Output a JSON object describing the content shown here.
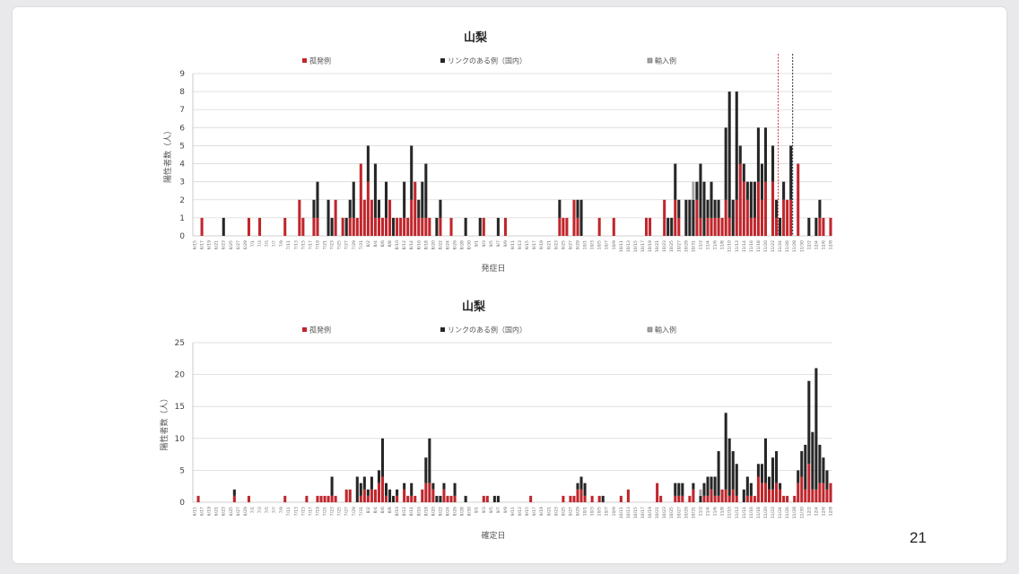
{
  "page_number": "21",
  "colors": {
    "sporadic": "#c0262c",
    "linked": "#262626",
    "imported": "#a6a6a6",
    "grid": "#d9d9d9"
  },
  "chart_data": [
    {
      "type": "bar",
      "stacked": true,
      "title": "山梨",
      "xlabel": "発症日",
      "ylabel": "陽性者数（人）",
      "ylim": [
        0,
        9
      ],
      "yticks": [
        0,
        1,
        2,
        3,
        4,
        5,
        6,
        7,
        8,
        9
      ],
      "legend": [
        "孤発例",
        "リンクのある例（国内）",
        "輸入例"
      ],
      "legend_placement": "top",
      "date_range": [
        "6/15",
        "12/8"
      ],
      "x_ticks": [
        "6/15",
        "6/17",
        "6/19",
        "6/21",
        "6/23",
        "6/25",
        "6/27",
        "6/29",
        "7/1",
        "7/3",
        "7/5",
        "7/7",
        "7/9",
        "7/11",
        "7/13",
        "7/15",
        "7/17",
        "7/19",
        "7/21",
        "7/23",
        "7/25",
        "7/27",
        "7/29",
        "7/31",
        "8/2",
        "8/4",
        "8/6",
        "8/8",
        "8/10",
        "8/12",
        "8/14",
        "8/16",
        "8/18",
        "8/20",
        "8/22",
        "8/24",
        "8/26",
        "8/28",
        "8/30",
        "9/1",
        "9/3",
        "9/5",
        "9/7",
        "9/9",
        "9/11",
        "9/13",
        "9/15",
        "9/17",
        "9/19",
        "9/21",
        "9/23",
        "9/25",
        "9/27",
        "9/29",
        "10/1",
        "10/3",
        "10/5",
        "10/7",
        "10/9",
        "10/11",
        "10/13",
        "10/15",
        "10/17",
        "10/19",
        "10/21",
        "10/23",
        "10/25",
        "10/27",
        "10/29",
        "10/31",
        "11/2",
        "11/4",
        "11/6",
        "11/8",
        "11/10",
        "11/12",
        "11/14",
        "11/16",
        "11/18",
        "11/20",
        "11/22",
        "11/24",
        "11/26",
        "11/28",
        "11/30",
        "12/2",
        "12/4",
        "12/6",
        "12/8"
      ],
      "series_order": [
        "sporadic",
        "linked",
        "imported"
      ],
      "bars": {
        "6/17": [
          1,
          0,
          0
        ],
        "6/23": [
          0,
          1,
          0
        ],
        "6/30": [
          1,
          0,
          0
        ],
        "7/3": [
          1,
          0,
          0
        ],
        "7/10": [
          1,
          0,
          0
        ],
        "7/14": [
          2,
          0,
          0
        ],
        "7/15": [
          1,
          0,
          0
        ],
        "7/18": [
          1,
          1,
          0
        ],
        "7/19": [
          1,
          2,
          0
        ],
        "7/22": [
          0,
          2,
          0
        ],
        "7/23": [
          0,
          1,
          0
        ],
        "7/24": [
          2,
          0,
          0
        ],
        "7/26": [
          1,
          0,
          0
        ],
        "7/27": [
          0,
          1,
          0
        ],
        "7/28": [
          1,
          1,
          0
        ],
        "7/29": [
          1,
          2,
          0
        ],
        "7/30": [
          1,
          0,
          0
        ],
        "7/31": [
          4,
          0,
          0
        ],
        "8/1": [
          2,
          0,
          0
        ],
        "8/2": [
          3,
          2,
          0
        ],
        "8/3": [
          2,
          0,
          0
        ],
        "8/4": [
          1,
          3,
          0
        ],
        "8/5": [
          1,
          1,
          0
        ],
        "8/6": [
          1,
          0,
          0
        ],
        "8/7": [
          1,
          2,
          0
        ],
        "8/8": [
          2,
          0,
          0
        ],
        "8/9": [
          0,
          1,
          0
        ],
        "8/10": [
          1,
          0,
          0
        ],
        "8/11": [
          1,
          0,
          0
        ],
        "8/12": [
          1,
          2,
          0
        ],
        "8/13": [
          1,
          0,
          0
        ],
        "8/14": [
          2,
          3,
          0
        ],
        "8/15": [
          3,
          0,
          0
        ],
        "8/16": [
          1,
          1,
          0
        ],
        "8/17": [
          1,
          2,
          0
        ],
        "8/18": [
          1,
          3,
          0
        ],
        "8/19": [
          1,
          0,
          0
        ],
        "8/21": [
          0,
          1,
          0
        ],
        "8/22": [
          1,
          1,
          0
        ],
        "8/25": [
          1,
          0,
          0
        ],
        "8/29": [
          0,
          1,
          0
        ],
        "9/2": [
          0,
          1,
          0
        ],
        "9/3": [
          1,
          0,
          0
        ],
        "9/7": [
          0,
          1,
          0
        ],
        "9/9": [
          1,
          0,
          0
        ],
        "9/24": [
          1,
          1,
          0
        ],
        "9/25": [
          1,
          0,
          0
        ],
        "9/26": [
          1,
          0,
          0
        ],
        "9/28": [
          2,
          0,
          0
        ],
        "9/29": [
          1,
          1,
          0
        ],
        "9/30": [
          0,
          2,
          0
        ],
        "10/5": [
          1,
          0,
          0
        ],
        "10/9": [
          1,
          0,
          0
        ],
        "10/18": [
          1,
          0,
          0
        ],
        "10/19": [
          1,
          0,
          0
        ],
        "10/23": [
          2,
          0,
          0
        ],
        "10/24": [
          0,
          1,
          0
        ],
        "10/25": [
          0,
          1,
          0
        ],
        "10/26": [
          2,
          2,
          0
        ],
        "10/27": [
          1,
          1,
          0
        ],
        "10/29": [
          0,
          2,
          0
        ],
        "10/30": [
          0,
          2,
          0
        ],
        "10/31": [
          0,
          2,
          1
        ],
        "11/1": [
          2,
          1,
          0
        ],
        "11/2": [
          1,
          3,
          0
        ],
        "11/3": [
          0,
          3,
          0
        ],
        "11/4": [
          1,
          1,
          0
        ],
        "11/5": [
          1,
          2,
          0
        ],
        "11/6": [
          1,
          1,
          0
        ],
        "11/7": [
          1,
          1,
          0
        ],
        "11/8": [
          1,
          0,
          0
        ],
        "11/9": [
          2,
          4,
          0
        ],
        "11/10": [
          1,
          7,
          0
        ],
        "11/11": [
          0,
          2,
          0
        ],
        "11/12": [
          2,
          6,
          0
        ],
        "11/13": [
          4,
          1,
          0
        ],
        "11/14": [
          3,
          1,
          0
        ],
        "11/15": [
          2,
          1,
          0
        ],
        "11/16": [
          1,
          2,
          0
        ],
        "11/17": [
          1,
          2,
          0
        ],
        "11/18": [
          3,
          3,
          0
        ],
        "11/19": [
          2,
          2,
          0
        ],
        "11/20": [
          3,
          3,
          0
        ],
        "11/22": [
          3,
          2,
          0
        ],
        "11/23": [
          1,
          1,
          0
        ],
        "11/24": [
          0,
          1,
          0
        ],
        "11/25": [
          2,
          1,
          0
        ],
        "11/26": [
          2,
          0,
          0
        ],
        "11/27": [
          2,
          3,
          0
        ],
        "11/29": [
          4,
          0,
          0
        ],
        "12/2": [
          0,
          1,
          0
        ],
        "12/4": [
          0,
          1,
          0
        ],
        "12/5": [
          1,
          1,
          0
        ],
        "12/6": [
          1,
          0,
          0
        ],
        "12/8": [
          1,
          0,
          0
        ]
      },
      "markers": [
        {
          "date": "11/23",
          "color": "#d0343a"
        },
        {
          "date": "11/27",
          "color": "#1f2a44"
        }
      ]
    },
    {
      "type": "bar",
      "stacked": true,
      "title": "山梨",
      "xlabel": "確定日",
      "ylabel": "陽性者数（人）",
      "ylim": [
        0,
        25
      ],
      "yticks": [
        0,
        5,
        10,
        15,
        20,
        25
      ],
      "legend": [
        "孤発例",
        "リンクのある例（国内）",
        "輸入例"
      ],
      "legend_placement": "top",
      "date_range": [
        "6/15",
        "12/8"
      ],
      "x_ticks": [
        "6/15",
        "6/17",
        "6/19",
        "6/21",
        "6/23",
        "6/25",
        "6/27",
        "6/29",
        "7/1",
        "7/3",
        "7/5",
        "7/7",
        "7/9",
        "7/11",
        "7/13",
        "7/15",
        "7/17",
        "7/19",
        "7/21",
        "7/23",
        "7/25",
        "7/27",
        "7/29",
        "7/31",
        "8/2",
        "8/4",
        "8/6",
        "8/8",
        "8/10",
        "8/12",
        "8/14",
        "8/16",
        "8/18",
        "8/20",
        "8/22",
        "8/24",
        "8/26",
        "8/28",
        "8/30",
        "9/1",
        "9/3",
        "9/5",
        "9/7",
        "9/9",
        "9/11",
        "9/13",
        "9/15",
        "9/17",
        "9/19",
        "9/21",
        "9/23",
        "9/25",
        "9/27",
        "9/29",
        "10/1",
        "10/3",
        "10/5",
        "10/7",
        "10/9",
        "10/11",
        "10/13",
        "10/15",
        "10/17",
        "10/19",
        "10/21",
        "10/23",
        "10/25",
        "10/27",
        "10/29",
        "10/31",
        "11/2",
        "11/4",
        "11/6",
        "11/8",
        "11/10",
        "11/12",
        "11/14",
        "11/16",
        "11/18",
        "11/20",
        "11/22",
        "11/24",
        "11/26",
        "11/28",
        "11/30",
        "12/2",
        "12/4",
        "12/6",
        "12/8"
      ],
      "series_order": [
        "sporadic",
        "linked",
        "imported"
      ],
      "bars": {
        "6/16": [
          1,
          0,
          0
        ],
        "6/26": [
          1,
          1,
          0
        ],
        "6/30": [
          1,
          0,
          0
        ],
        "7/10": [
          1,
          0,
          0
        ],
        "7/16": [
          1,
          0,
          0
        ],
        "7/19": [
          1,
          0,
          0
        ],
        "7/20": [
          1,
          0,
          0
        ],
        "7/21": [
          1,
          0,
          0
        ],
        "7/22": [
          1,
          0,
          0
        ],
        "7/23": [
          1,
          3,
          0
        ],
        "7/24": [
          1,
          0,
          0
        ],
        "7/27": [
          2,
          0,
          0
        ],
        "7/28": [
          2,
          0,
          0
        ],
        "7/30": [
          0,
          4,
          0
        ],
        "7/31": [
          1,
          2,
          0
        ],
        "8/1": [
          2,
          2,
          0
        ],
        "8/2": [
          1,
          1,
          0
        ],
        "8/3": [
          2,
          2,
          0
        ],
        "8/4": [
          2,
          0,
          0
        ],
        "8/5": [
          3,
          2,
          0
        ],
        "8/6": [
          4,
          6,
          0
        ],
        "8/7": [
          1,
          2,
          0
        ],
        "8/8": [
          0,
          2,
          0
        ],
        "8/9": [
          0,
          1,
          0
        ],
        "8/10": [
          1,
          1,
          0
        ],
        "8/12": [
          2,
          1,
          0
        ],
        "8/13": [
          1,
          0,
          0
        ],
        "8/14": [
          1,
          2,
          0
        ],
        "8/15": [
          1,
          0,
          0
        ],
        "8/17": [
          2,
          0,
          0
        ],
        "8/18": [
          3,
          4,
          0
        ],
        "8/19": [
          3,
          7,
          0
        ],
        "8/20": [
          2,
          1,
          0
        ],
        "8/21": [
          0,
          1,
          0
        ],
        "8/22": [
          0,
          1,
          0
        ],
        "8/23": [
          2,
          1,
          0
        ],
        "8/24": [
          1,
          0,
          0
        ],
        "8/25": [
          1,
          0,
          0
        ],
        "8/26": [
          1,
          2,
          0
        ],
        "8/29": [
          0,
          1,
          0
        ],
        "9/3": [
          1,
          0,
          0
        ],
        "9/4": [
          1,
          0,
          0
        ],
        "9/6": [
          0,
          1,
          0
        ],
        "9/7": [
          0,
          1,
          0
        ],
        "9/16": [
          1,
          0,
          0
        ],
        "9/25": [
          1,
          0,
          0
        ],
        "9/27": [
          1,
          0,
          0
        ],
        "9/28": [
          1,
          0,
          0
        ],
        "9/29": [
          2,
          1,
          0
        ],
        "9/30": [
          2,
          2,
          0
        ],
        "10/1": [
          1,
          2,
          0
        ],
        "10/3": [
          1,
          0,
          0
        ],
        "10/5": [
          1,
          0,
          0
        ],
        "10/6": [
          0,
          1,
          0
        ],
        "10/11": [
          1,
          0,
          0
        ],
        "10/13": [
          2,
          0,
          0
        ],
        "10/21": [
          3,
          0,
          0
        ],
        "10/22": [
          1,
          0,
          0
        ],
        "10/26": [
          1,
          2,
          0
        ],
        "10/27": [
          1,
          2,
          0
        ],
        "10/28": [
          1,
          2,
          0
        ],
        "10/30": [
          1,
          0,
          0
        ],
        "10/31": [
          2,
          1,
          0
        ],
        "11/2": [
          0,
          1,
          1
        ],
        "11/3": [
          1,
          2,
          0
        ],
        "11/4": [
          1,
          3,
          0
        ],
        "11/5": [
          2,
          2,
          0
        ],
        "11/6": [
          1,
          3,
          0
        ],
        "11/7": [
          1,
          7,
          0
        ],
        "11/8": [
          2,
          0,
          0
        ],
        "11/9": [
          2,
          12,
          0
        ],
        "11/10": [
          1,
          9,
          0
        ],
        "11/11": [
          2,
          6,
          0
        ],
        "11/12": [
          1,
          5,
          0
        ],
        "11/14": [
          0,
          2,
          0
        ],
        "11/15": [
          1,
          3,
          0
        ],
        "11/16": [
          1,
          2,
          0
        ],
        "11/17": [
          1,
          0,
          0
        ],
        "11/18": [
          4,
          2,
          0
        ],
        "11/19": [
          3,
          3,
          0
        ],
        "11/20": [
          3,
          7,
          0
        ],
        "11/21": [
          2,
          2,
          0
        ],
        "11/22": [
          2,
          5,
          0
        ],
        "11/23": [
          3,
          5,
          0
        ],
        "11/24": [
          2,
          1,
          0
        ],
        "11/25": [
          1,
          0,
          0
        ],
        "11/26": [
          1,
          0,
          0
        ],
        "11/28": [
          1,
          0,
          0
        ],
        "11/29": [
          3,
          2,
          0
        ],
        "11/30": [
          4,
          4,
          0
        ],
        "12/1": [
          2,
          7,
          0
        ],
        "12/2": [
          6,
          13,
          0
        ],
        "12/3": [
          2,
          9,
          0
        ],
        "12/4": [
          2,
          19,
          0
        ],
        "12/5": [
          3,
          6,
          0
        ],
        "12/6": [
          3,
          4,
          0
        ],
        "12/7": [
          2,
          3,
          0
        ],
        "12/8": [
          3,
          0,
          0
        ]
      },
      "markers": []
    }
  ]
}
